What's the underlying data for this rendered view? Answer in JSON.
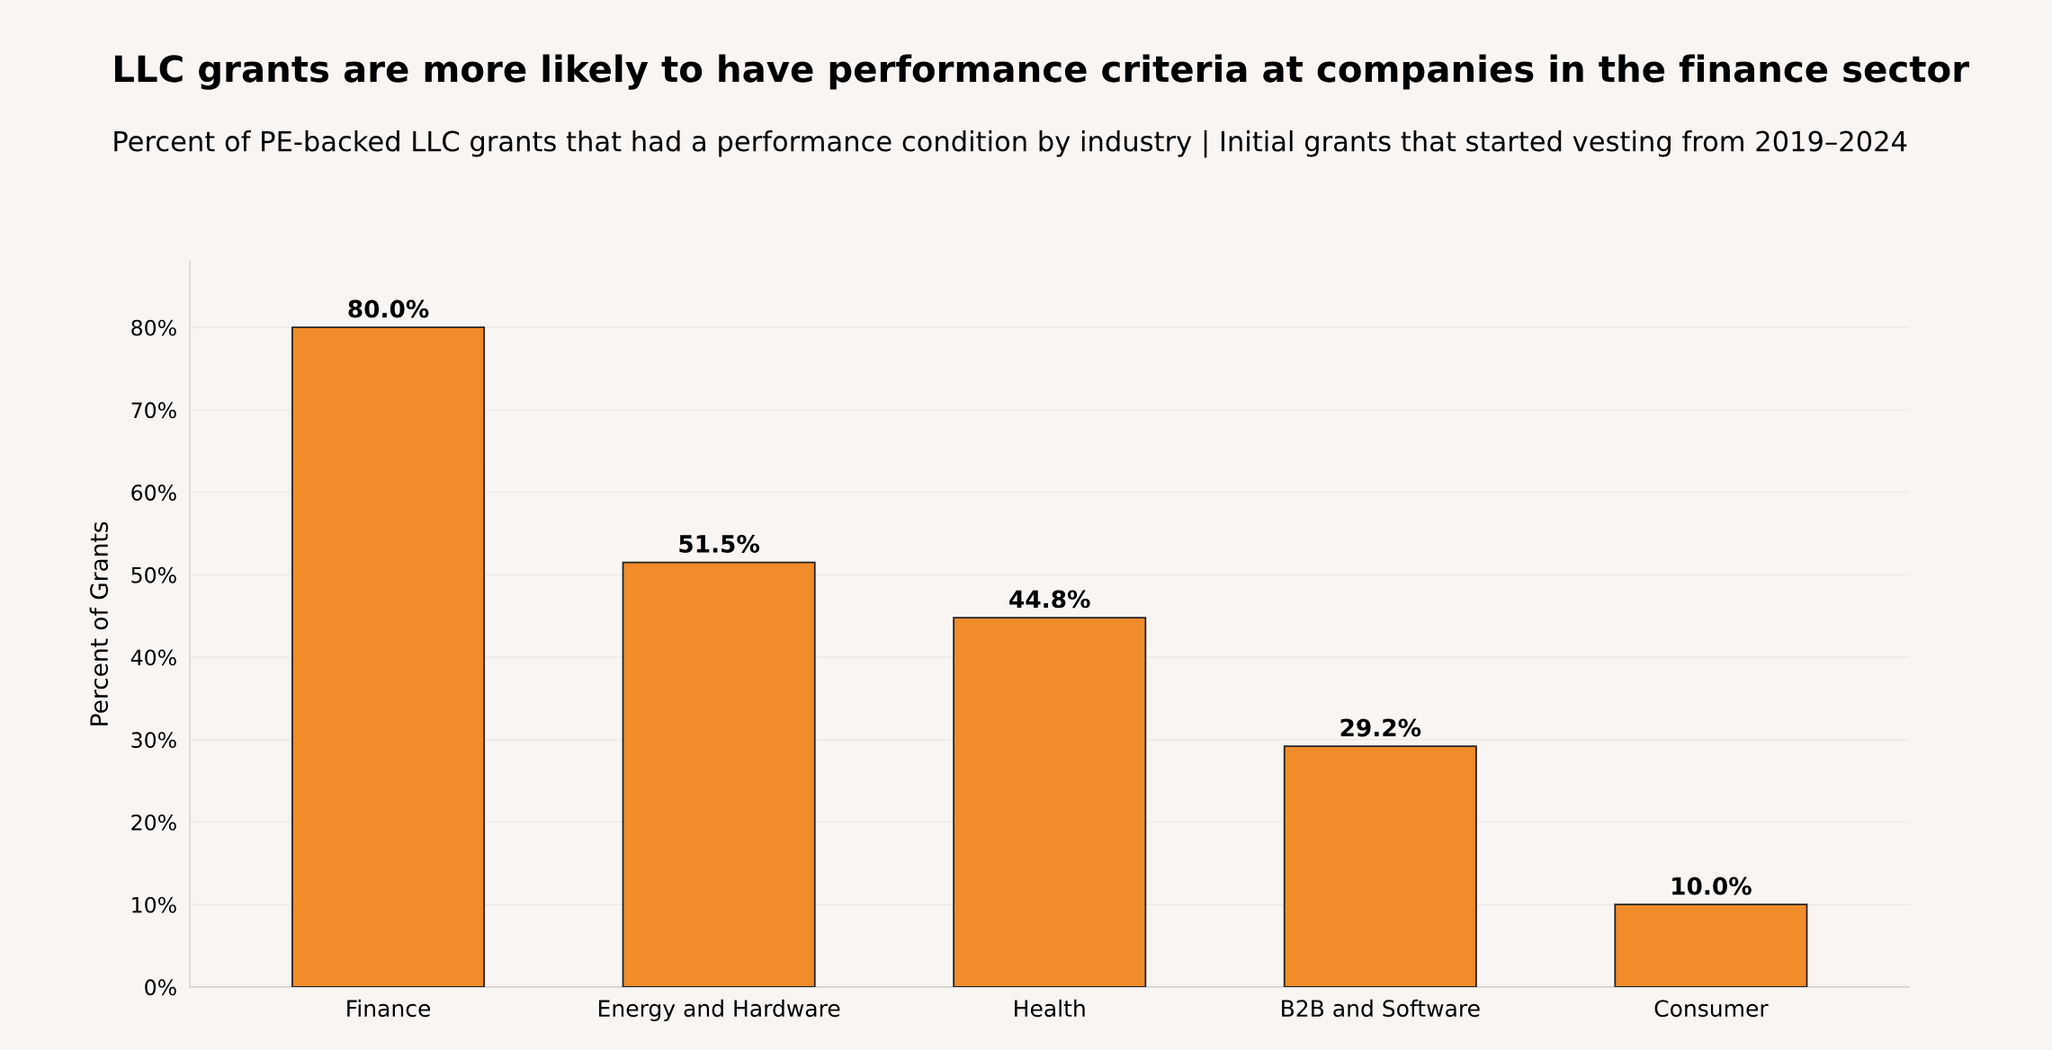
{
  "chart_data": {
    "type": "bar",
    "title": "LLC grants are more likely to have performance criteria at companies in the finance sector",
    "subtitle": "Percent of PE-backed LLC grants that had a performance condition by industry | Initial grants that started vesting from 2019–2024",
    "ylabel": "Percent of Grants",
    "categories": [
      "Finance",
      "Energy and Hardware",
      "Health",
      "B2B and Software",
      "Consumer"
    ],
    "values": [
      80.0,
      51.5,
      44.8,
      29.2,
      10.0
    ],
    "value_labels": [
      "80.0%",
      "51.5%",
      "44.8%",
      "29.2%",
      "10.0%"
    ],
    "color": "#f08c2a",
    "ylim": [
      0,
      88
    ],
    "yticks": [
      {
        "value": 0,
        "label": "0%"
      },
      {
        "value": 10,
        "label": "10%"
      },
      {
        "value": 20,
        "label": "20%"
      },
      {
        "value": 30,
        "label": "30%"
      },
      {
        "value": 40,
        "label": "40%"
      },
      {
        "value": 50,
        "label": "50%"
      },
      {
        "value": 60,
        "label": "60%"
      },
      {
        "value": 70,
        "label": "70%"
      },
      {
        "value": 80,
        "label": "80%"
      }
    ],
    "grid": "y",
    "legend": false
  }
}
